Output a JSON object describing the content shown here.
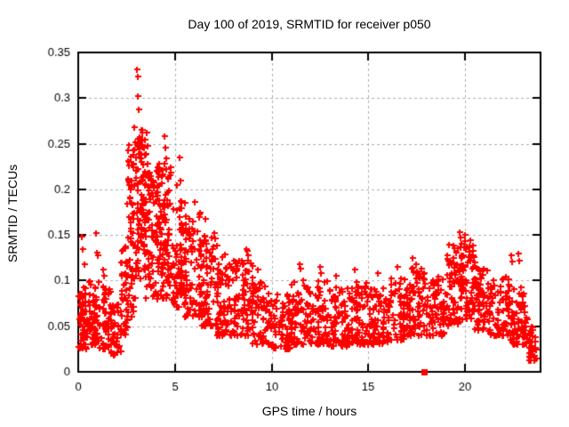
{
  "chart_data": {
    "type": "scatter",
    "title": "Day 100 of 2019, SRMTID for receiver p050",
    "xlabel": "GPS time / hours",
    "ylabel": "SRMTID / TECUs",
    "xlim": [
      0,
      23.9
    ],
    "ylim": [
      0,
      0.35
    ],
    "xticks": [
      0,
      5,
      10,
      15,
      20
    ],
    "xtick_labels": [
      "0",
      "5",
      "10",
      "15",
      "20"
    ],
    "yticks": [
      0,
      0.05,
      0.1,
      0.15,
      0.2,
      0.25,
      0.3,
      0.35
    ],
    "ytick_labels": [
      "0",
      "0.05",
      "0.1",
      "0.15",
      "0.2",
      "0.25",
      "0.3",
      "0.35"
    ],
    "grid": {
      "show": true,
      "style": "dashed",
      "color": "#b0b0b0"
    },
    "colors": {
      "marker": "#ff0000",
      "axis": "#000000",
      "text": "#000000",
      "background": "#ffffff"
    },
    "legend": "none",
    "seed": 1234567,
    "series": [
      {
        "name": "srmtid",
        "marker": "plus",
        "color": "#ff0000",
        "marker_size_px": 7,
        "marker_stroke_px": 2,
        "density_segments": [
          {
            "x0": 0.0,
            "x1": 0.5,
            "n": 60,
            "y_min": 0.025,
            "y_max": 0.095,
            "bias": 1.6
          },
          {
            "x0": 0.5,
            "x1": 1.1,
            "n": 55,
            "y_min": 0.03,
            "y_max": 0.1,
            "bias": 1.8
          },
          {
            "x0": 1.1,
            "x1": 1.7,
            "n": 50,
            "y_min": 0.025,
            "y_max": 0.095,
            "bias": 1.6
          },
          {
            "x0": 1.7,
            "x1": 2.2,
            "n": 45,
            "y_min": 0.018,
            "y_max": 0.075,
            "bias": 1.4
          },
          {
            "x0": 2.2,
            "x1": 2.55,
            "n": 40,
            "y_min": 0.04,
            "y_max": 0.14,
            "bias": 1.3
          },
          {
            "x0": 2.55,
            "x1": 3.0,
            "n": 70,
            "y_min": 0.06,
            "y_max": 0.25,
            "bias": 1.1
          },
          {
            "x0": 3.0,
            "x1": 3.5,
            "n": 95,
            "y_min": 0.1,
            "y_max": 0.265,
            "bias": 1.0
          },
          {
            "x0": 3.5,
            "x1": 4.2,
            "n": 90,
            "y_min": 0.08,
            "y_max": 0.23,
            "bias": 1.2
          },
          {
            "x0": 4.2,
            "x1": 4.8,
            "n": 80,
            "y_min": 0.08,
            "y_max": 0.23,
            "bias": 1.2
          },
          {
            "x0": 4.8,
            "x1": 5.5,
            "n": 80,
            "y_min": 0.07,
            "y_max": 0.19,
            "bias": 1.3
          },
          {
            "x0": 5.5,
            "x1": 6.3,
            "n": 75,
            "y_min": 0.06,
            "y_max": 0.175,
            "bias": 1.3
          },
          {
            "x0": 6.3,
            "x1": 7.0,
            "n": 75,
            "y_min": 0.05,
            "y_max": 0.155,
            "bias": 1.3
          },
          {
            "x0": 7.0,
            "x1": 8.0,
            "n": 80,
            "y_min": 0.04,
            "y_max": 0.13,
            "bias": 1.4
          },
          {
            "x0": 8.0,
            "x1": 9.0,
            "n": 80,
            "y_min": 0.04,
            "y_max": 0.125,
            "bias": 1.4
          },
          {
            "x0": 9.0,
            "x1": 10.0,
            "n": 75,
            "y_min": 0.03,
            "y_max": 0.1,
            "bias": 1.5
          },
          {
            "x0": 10.0,
            "x1": 11.0,
            "n": 75,
            "y_min": 0.025,
            "y_max": 0.085,
            "bias": 1.5
          },
          {
            "x0": 11.0,
            "x1": 12.0,
            "n": 75,
            "y_min": 0.03,
            "y_max": 0.1,
            "bias": 1.6
          },
          {
            "x0": 12.0,
            "x1": 13.0,
            "n": 75,
            "y_min": 0.03,
            "y_max": 0.1,
            "bias": 1.6
          },
          {
            "x0": 13.0,
            "x1": 14.0,
            "n": 75,
            "y_min": 0.028,
            "y_max": 0.095,
            "bias": 1.5
          },
          {
            "x0": 14.0,
            "x1": 15.0,
            "n": 75,
            "y_min": 0.03,
            "y_max": 0.1,
            "bias": 1.6
          },
          {
            "x0": 15.0,
            "x1": 16.0,
            "n": 75,
            "y_min": 0.03,
            "y_max": 0.1,
            "bias": 1.5
          },
          {
            "x0": 16.0,
            "x1": 17.0,
            "n": 75,
            "y_min": 0.035,
            "y_max": 0.105,
            "bias": 1.4
          },
          {
            "x0": 17.0,
            "x1": 18.0,
            "n": 75,
            "y_min": 0.04,
            "y_max": 0.115,
            "bias": 1.4
          },
          {
            "x0": 18.0,
            "x1": 19.0,
            "n": 75,
            "y_min": 0.04,
            "y_max": 0.105,
            "bias": 1.4
          },
          {
            "x0": 19.0,
            "x1": 19.8,
            "n": 70,
            "y_min": 0.05,
            "y_max": 0.14,
            "bias": 1.2
          },
          {
            "x0": 19.8,
            "x1": 20.5,
            "n": 70,
            "y_min": 0.055,
            "y_max": 0.145,
            "bias": 1.2
          },
          {
            "x0": 20.5,
            "x1": 21.3,
            "n": 70,
            "y_min": 0.045,
            "y_max": 0.115,
            "bias": 1.3
          },
          {
            "x0": 21.3,
            "x1": 22.3,
            "n": 70,
            "y_min": 0.04,
            "y_max": 0.105,
            "bias": 1.4
          },
          {
            "x0": 22.3,
            "x1": 23.1,
            "n": 65,
            "y_min": 0.03,
            "y_max": 0.095,
            "bias": 1.4
          },
          {
            "x0": 23.1,
            "x1": 23.7,
            "n": 35,
            "y_min": 0.012,
            "y_max": 0.06,
            "bias": 1.3
          }
        ],
        "outliers": [
          [
            0.18,
            0.148
          ],
          [
            0.22,
            0.135
          ],
          [
            0.3,
            0.118
          ],
          [
            0.9,
            0.152
          ],
          [
            0.95,
            0.131
          ],
          [
            1.0,
            0.128
          ],
          [
            1.3,
            0.112
          ],
          [
            1.35,
            0.105
          ],
          [
            2.9,
            0.268
          ],
          [
            2.95,
            0.252
          ],
          [
            3.05,
            0.331
          ],
          [
            3.07,
            0.324
          ],
          [
            3.1,
            0.302
          ],
          [
            3.12,
            0.288
          ],
          [
            3.3,
            0.262
          ],
          [
            3.35,
            0.247
          ],
          [
            3.55,
            0.262
          ],
          [
            3.6,
            0.248
          ],
          [
            4.45,
            0.258
          ],
          [
            4.5,
            0.246
          ],
          [
            4.55,
            0.234
          ],
          [
            5.1,
            0.205
          ],
          [
            5.25,
            0.235
          ],
          [
            5.3,
            0.21
          ],
          [
            6.0,
            0.186
          ],
          [
            6.55,
            0.168
          ],
          [
            7.05,
            0.152
          ],
          [
            7.1,
            0.146
          ],
          [
            7.15,
            0.138
          ],
          [
            8.7,
            0.135
          ],
          [
            8.75,
            0.133
          ],
          [
            8.8,
            0.128
          ],
          [
            9.3,
            0.112
          ],
          [
            11.45,
            0.118
          ],
          [
            11.5,
            0.113
          ],
          [
            12.5,
            0.115
          ],
          [
            12.55,
            0.108
          ],
          [
            13.35,
            0.105
          ],
          [
            14.3,
            0.112
          ],
          [
            15.5,
            0.108
          ],
          [
            16.5,
            0.115
          ],
          [
            17.3,
            0.125
          ],
          [
            17.45,
            0.118
          ],
          [
            19.7,
            0.153
          ],
          [
            19.75,
            0.147
          ],
          [
            20.0,
            0.15
          ],
          [
            22.4,
            0.128
          ],
          [
            22.45,
            0.121
          ],
          [
            22.75,
            0.13
          ],
          [
            22.8,
            0.122
          ],
          [
            23.05,
            0.072
          ],
          [
            23.3,
            0.02
          ],
          [
            23.35,
            0.016
          ],
          [
            23.45,
            0.028
          ],
          [
            23.5,
            0.022
          ]
        ]
      },
      {
        "name": "flag-marker",
        "marker": "filled-square",
        "color": "#ff0000",
        "marker_size_px": 7,
        "points": [
          [
            17.9,
            0.0
          ]
        ]
      }
    ]
  }
}
